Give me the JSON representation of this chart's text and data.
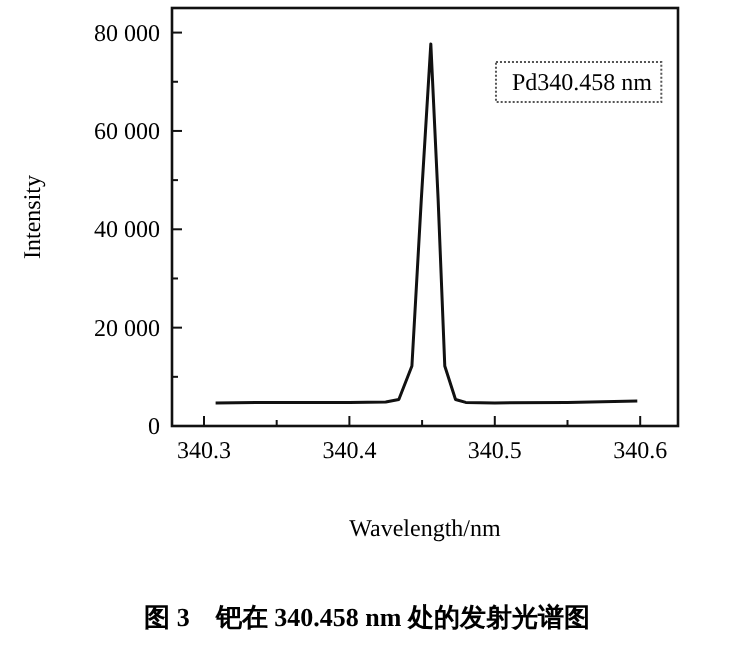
{
  "chart_data": {
    "type": "line",
    "xlabel": "Wavelength/nm",
    "ylabel": "Intensity",
    "x": [
      340.308,
      340.35,
      340.4,
      340.425,
      340.434,
      340.443,
      340.4495,
      340.456,
      340.461,
      340.4656,
      340.473,
      340.48,
      340.5,
      340.55,
      340.598
    ],
    "series": [
      {
        "color": "#111111",
        "values": [
          4700,
          4800,
          4800,
          4900,
          5400,
          12200,
          46300,
          77700,
          46300,
          12200,
          5400,
          4800,
          4700,
          4800,
          5100
        ]
      }
    ],
    "xlim": [
      340.278,
      340.626
    ],
    "ylim": [
      0,
      85000
    ],
    "xticks": [
      340.3,
      {
        "value": 340.35,
        "label": null
      },
      340.4,
      {
        "value": 340.45,
        "label": null
      },
      340.5,
      {
        "value": 340.55,
        "label": null
      },
      340.6
    ],
    "yticks": [
      0,
      {
        "value": 10000,
        "label": null
      },
      {
        "value": 20000,
        "label": "20 000"
      },
      {
        "value": 30000,
        "label": null
      },
      {
        "value": 40000,
        "label": "40 000"
      },
      {
        "value": 50000,
        "label": null
      },
      {
        "value": 60000,
        "label": "60 000"
      },
      {
        "value": 70000,
        "label": null
      },
      {
        "value": 80000,
        "label": "80 000"
      }
    ],
    "annotations": [
      "Pd340.458 nm",
      "图 3　钯在 340.458 nm 处的发射光谱图"
    ],
    "grid": false,
    "marker": "none",
    "line_style": "solid"
  }
}
